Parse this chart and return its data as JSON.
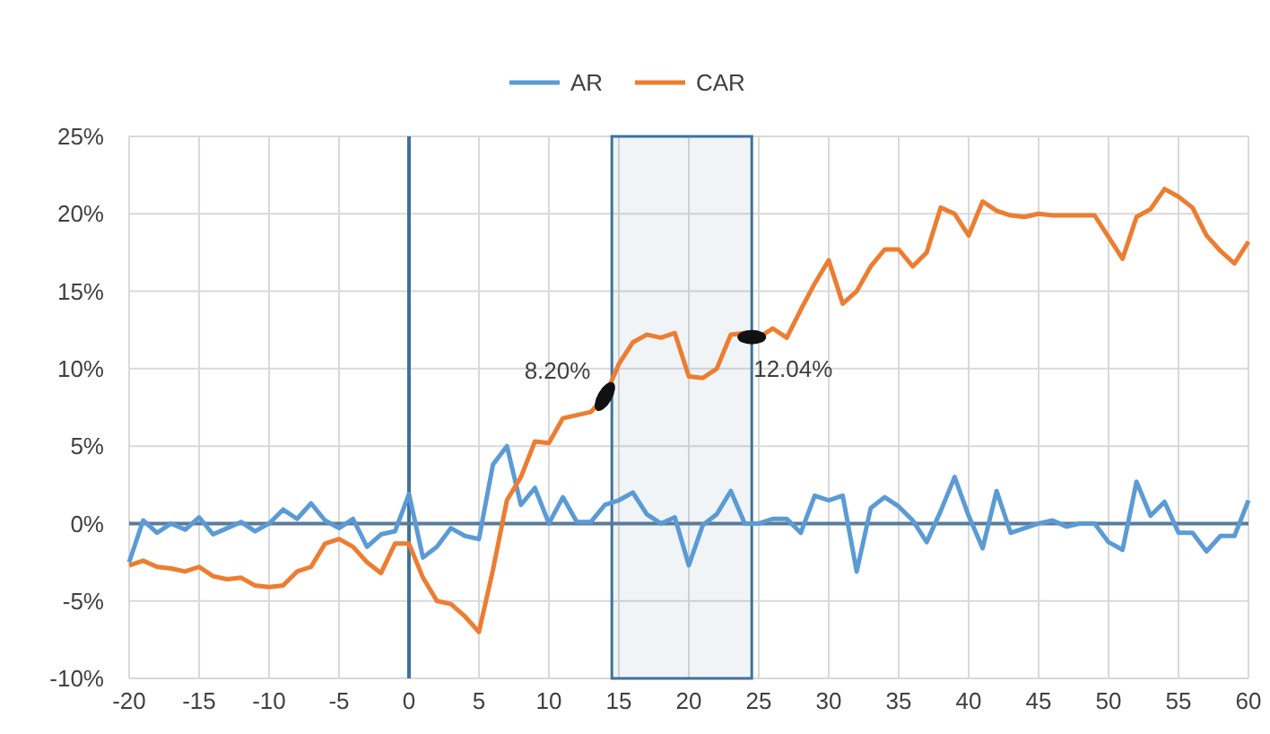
{
  "chart_data": {
    "type": "line",
    "x": [
      -20,
      -19,
      -18,
      -17,
      -16,
      -15,
      -14,
      -13,
      -12,
      -11,
      -10,
      -9,
      -8,
      -7,
      -6,
      -5,
      -4,
      -3,
      -2,
      -1,
      0,
      1,
      2,
      3,
      4,
      5,
      6,
      7,
      8,
      9,
      10,
      11,
      12,
      13,
      14,
      15,
      16,
      17,
      18,
      19,
      20,
      21,
      22,
      23,
      24,
      25,
      26,
      27,
      28,
      29,
      30,
      31,
      32,
      33,
      34,
      35,
      36,
      37,
      38,
      39,
      40,
      41,
      42,
      43,
      44,
      45,
      46,
      47,
      48,
      49,
      50,
      51,
      52,
      53,
      54,
      55,
      56,
      57,
      58,
      59,
      60
    ],
    "series": [
      {
        "name": "AR",
        "color": "#5b9bd5",
        "values": [
          -2.5,
          0.2,
          -0.6,
          0,
          -0.4,
          0.4,
          -0.7,
          -0.3,
          0.1,
          -0.5,
          0,
          0.9,
          0.3,
          1.3,
          0.2,
          -0.3,
          0.3,
          -1.5,
          -0.7,
          -0.5,
          1.9,
          -2.2,
          -1.5,
          -0.3,
          -0.8,
          -1,
          3.8,
          5,
          1.2,
          2.3,
          0,
          1.7,
          0.1,
          0.1,
          1.2,
          1.5,
          2,
          0.6,
          0,
          0.4,
          -2.7,
          -0.1,
          0.6,
          2.1,
          0,
          0,
          0.3,
          0.3,
          -0.6,
          1.8,
          1.5,
          1.8,
          -3.1,
          1,
          1.7,
          1.1,
          0.2,
          -1.2,
          0.8,
          3,
          0.5,
          -1.6,
          2.1,
          -0.6,
          -0.3,
          0,
          0.2,
          -0.2,
          0,
          0,
          -1.2,
          -1.7,
          2.7,
          0.5,
          1.4,
          -0.6,
          -0.6,
          -1.8,
          -0.8,
          -0.8,
          1.5
        ]
      },
      {
        "name": "CAR",
        "color": "#ed7d31",
        "values": [
          -2.7,
          -2.4,
          -2.8,
          -2.9,
          -3.1,
          -2.8,
          -3.4,
          -3.6,
          -3.5,
          -4,
          -4.1,
          -4,
          -3.1,
          -2.8,
          -1.3,
          -1,
          -1.5,
          -2.5,
          -3.2,
          -1.3,
          -1.3,
          -3.5,
          -5,
          -5.2,
          -6,
          -7,
          -3,
          1.5,
          3,
          5.3,
          5.2,
          6.8,
          7,
          7.2,
          8.2,
          10.3,
          11.7,
          12.2,
          12,
          12.3,
          9.5,
          9.4,
          10,
          12.2,
          12.3,
          12,
          12.6,
          12,
          13.8,
          15.5,
          17,
          14.2,
          15,
          16.6,
          17.7,
          17.7,
          16.6,
          17.5,
          20.4,
          20,
          18.6,
          20.8,
          20.2,
          19.9,
          19.8,
          20,
          19.9,
          19.9,
          19.9,
          19.9,
          18.5,
          17.1,
          19.8,
          20.3,
          21.6,
          21.1,
          20.4,
          18.6,
          17.6,
          16.8,
          18.2
        ]
      }
    ],
    "xlim": [
      -20,
      60
    ],
    "xticks": [
      -20,
      -15,
      -10,
      -5,
      0,
      5,
      10,
      15,
      20,
      25,
      30,
      35,
      40,
      45,
      50,
      55,
      60
    ],
    "ylim": [
      -10,
      25
    ],
    "yticks": [
      {
        "value": -10,
        "label": "-10%"
      },
      {
        "value": -5,
        "label": "-5%"
      },
      {
        "value": 0,
        "label": "0%"
      },
      {
        "value": 5,
        "label": "5%"
      },
      {
        "value": 10,
        "label": "10%"
      },
      {
        "value": 15,
        "label": "15%"
      },
      {
        "value": 20,
        "label": "20%"
      },
      {
        "value": 25,
        "label": "25%"
      }
    ],
    "grid": true,
    "legend": "top",
    "marker": "none",
    "line_style": "solid",
    "ref_lines": [
      {
        "axis": "x",
        "value": 0,
        "color": "#41719c"
      },
      {
        "axis": "y",
        "value": 0,
        "color": "#5b7a9a"
      }
    ],
    "bands": [
      {
        "axis": "x",
        "from": 14.5,
        "to": 24.5,
        "color": "#41719c"
      }
    ],
    "annotations": [
      {
        "text": "8.20%",
        "x": 14,
        "y": 8.2
      },
      {
        "text": "12.04%",
        "x": 24.5,
        "y": 12.04
      }
    ]
  }
}
